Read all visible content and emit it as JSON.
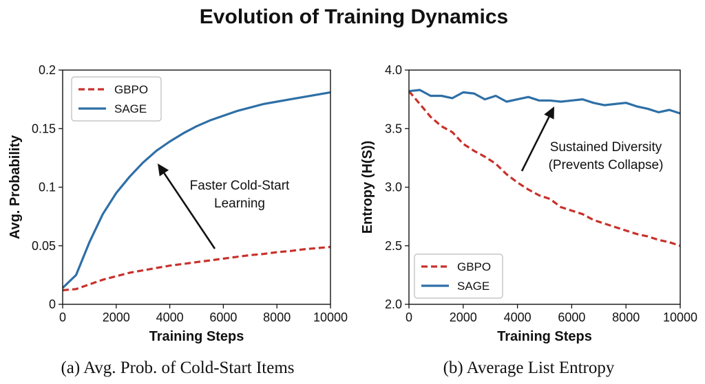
{
  "figure": {
    "title": "Evolution of Training Dynamics"
  },
  "colors": {
    "gbpo": "#c8312b",
    "sage": "#2e6fa6",
    "text": "#111111",
    "arrow": "#111111"
  },
  "chart_data": [
    {
      "type": "line",
      "caption": "(a) Avg. Prob. of Cold-Start Items",
      "xlabel": "Training Steps",
      "ylabel": "Avg. Probability",
      "xlim": [
        0,
        10000
      ],
      "ylim": [
        0,
        0.2
      ],
      "xticks": [
        "0",
        "2000",
        "4000",
        "6000",
        "8000",
        "10000"
      ],
      "yticks": [
        "0",
        "0.05",
        "0.1",
        "0.15",
        "0.2"
      ],
      "grid": false,
      "legend_position": "upper-left",
      "annotation": {
        "lines": [
          "Faster Cold-Start",
          "Learning"
        ]
      },
      "series": [
        {
          "name": "GBPO",
          "style": "dashed",
          "color": "#c8312b",
          "x": [
            0,
            500,
            1000,
            1500,
            2000,
            2500,
            3000,
            3500,
            4000,
            4500,
            5000,
            5500,
            6000,
            6500,
            7000,
            7500,
            8000,
            8500,
            9000,
            9500,
            10000
          ],
          "y": [
            0.012,
            0.013,
            0.017,
            0.021,
            0.024,
            0.027,
            0.029,
            0.031,
            0.033,
            0.0345,
            0.036,
            0.0375,
            0.039,
            0.0405,
            0.042,
            0.043,
            0.0445,
            0.0455,
            0.047,
            0.048,
            0.049
          ]
        },
        {
          "name": "SAGE",
          "style": "solid",
          "color": "#2e6fa6",
          "x": [
            0,
            500,
            1000,
            1500,
            2000,
            2500,
            3000,
            3500,
            4000,
            4500,
            5000,
            5500,
            6000,
            6500,
            7000,
            7500,
            8000,
            8500,
            9000,
            9500,
            10000
          ],
          "y": [
            0.014,
            0.025,
            0.053,
            0.077,
            0.095,
            0.109,
            0.121,
            0.131,
            0.139,
            0.146,
            0.152,
            0.157,
            0.161,
            0.165,
            0.168,
            0.171,
            0.173,
            0.175,
            0.177,
            0.179,
            0.181
          ]
        }
      ]
    },
    {
      "type": "line",
      "caption": "(b) Average List Entropy",
      "xlabel": "Training Steps",
      "ylabel": "Entropy (H(S))",
      "xlim": [
        0,
        10000
      ],
      "ylim": [
        2.0,
        4.0
      ],
      "xticks": [
        "0",
        "2000",
        "4000",
        "6000",
        "8000",
        "10000"
      ],
      "yticks": [
        "2.0",
        "2.5",
        "3.0",
        "3.5",
        "4.0"
      ],
      "grid": false,
      "legend_position": "lower-left",
      "annotation": {
        "lines": [
          "Sustained Diversity",
          "(Prevents Collapse)"
        ]
      },
      "series": [
        {
          "name": "GBPO",
          "style": "dashed",
          "color": "#c8312b",
          "x": [
            0,
            400,
            800,
            1200,
            1600,
            2000,
            2400,
            2800,
            3200,
            3600,
            4000,
            4400,
            4800,
            5200,
            5600,
            6000,
            6400,
            6800,
            7200,
            7600,
            8000,
            8400,
            8800,
            9200,
            9600,
            10000
          ],
          "y": [
            3.82,
            3.71,
            3.6,
            3.52,
            3.47,
            3.37,
            3.31,
            3.26,
            3.2,
            3.11,
            3.04,
            2.98,
            2.93,
            2.9,
            2.83,
            2.8,
            2.77,
            2.72,
            2.69,
            2.66,
            2.63,
            2.6,
            2.58,
            2.55,
            2.53,
            2.5
          ]
        },
        {
          "name": "SAGE",
          "style": "solid",
          "color": "#2e6fa6",
          "x": [
            0,
            400,
            800,
            1200,
            1600,
            2000,
            2400,
            2800,
            3200,
            3600,
            4000,
            4400,
            4800,
            5200,
            5600,
            6000,
            6400,
            6800,
            7200,
            7600,
            8000,
            8400,
            8800,
            9200,
            9600,
            10000
          ],
          "y": [
            3.82,
            3.83,
            3.78,
            3.78,
            3.76,
            3.81,
            3.8,
            3.75,
            3.78,
            3.73,
            3.75,
            3.77,
            3.74,
            3.74,
            3.73,
            3.74,
            3.75,
            3.72,
            3.7,
            3.71,
            3.72,
            3.69,
            3.67,
            3.64,
            3.66,
            3.63
          ]
        }
      ]
    }
  ]
}
